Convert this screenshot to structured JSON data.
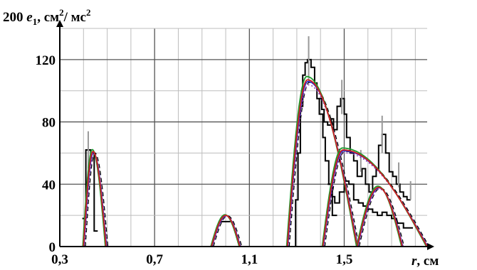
{
  "chart_data": {
    "type": "line",
    "ylabel": {
      "prefix": "200 ",
      "var": "e",
      "sub": "1",
      "rest": ", см",
      "sup1": "2",
      "mid": "/ мс",
      "sup2": "2"
    },
    "xlabel": {
      "var": "r",
      "rest": ", см"
    },
    "x_ticks": [
      "0,3",
      "0,7",
      "1,1",
      "1,5"
    ],
    "x_tick_values": [
      0.3,
      0.7,
      1.1,
      1.5
    ],
    "y_ticks": [
      "0",
      "40",
      "80",
      "120"
    ],
    "y_tick_values": [
      0,
      40,
      80,
      120
    ],
    "xlim": [
      0.3,
      1.85
    ],
    "ylim": [
      0,
      140
    ],
    "grid": true,
    "colors": {
      "histogram": "#000000",
      "error_bars": "#999999",
      "fit_red": "#cc1f1f",
      "fit_green": "#1f9a2e",
      "fit_blue": "#2a2ad0",
      "fit_purple": "#8a3aa8",
      "fit_dashed": "#000000"
    },
    "peaks": [
      {
        "name": "p1",
        "start": 0.4,
        "center": 0.44,
        "end": 0.495,
        "height": 61
      },
      {
        "name": "p2",
        "start": 0.94,
        "center": 1.0,
        "end": 1.06,
        "height": 20
      },
      {
        "name": "p3",
        "start": 1.26,
        "center": 1.345,
        "end": 1.555,
        "height": 107
      },
      {
        "name": "p4",
        "start": 1.41,
        "center": 1.495,
        "end": 1.85,
        "height": 62
      },
      {
        "name": "p5",
        "start": 1.555,
        "center": 1.645,
        "end": 1.745,
        "height": 38
      }
    ],
    "histogram_segments": [
      {
        "x": [
          0.395,
          0.41,
          0.41,
          0.43,
          0.43,
          0.445,
          0.445,
          0.46
        ],
        "y": [
          18,
          18,
          62,
          62,
          60,
          60,
          10,
          10
        ]
      },
      {
        "x": [
          0.97,
          1.02
        ],
        "y": [
          16,
          16
        ]
      },
      {
        "x": [
          1.285,
          1.295,
          1.295,
          1.305,
          1.305,
          1.315,
          1.315,
          1.325,
          1.325,
          1.335,
          1.335,
          1.345,
          1.345,
          1.36,
          1.36,
          1.375,
          1.375,
          1.385,
          1.385,
          1.395,
          1.395,
          1.41,
          1.41,
          1.42,
          1.42,
          1.435,
          1.435,
          1.45,
          1.45,
          1.47
        ],
        "y": [
          0,
          0,
          30,
          30,
          60,
          60,
          90,
          90,
          110,
          110,
          118,
          118,
          120,
          120,
          115,
          115,
          105,
          105,
          95,
          95,
          85,
          85,
          70,
          70,
          55,
          55,
          40,
          40,
          20,
          20
        ]
      },
      {
        "x": [
          1.395,
          1.405,
          1.405,
          1.415,
          1.415,
          1.43,
          1.43,
          1.445,
          1.445,
          1.455,
          1.455,
          1.47,
          1.47,
          1.485,
          1.485,
          1.5,
          1.5,
          1.51,
          1.51,
          1.525,
          1.525,
          1.54,
          1.54,
          1.555,
          1.555,
          1.575,
          1.575,
          1.59,
          1.59,
          1.605,
          1.605,
          1.62,
          1.62,
          1.635,
          1.635,
          1.645,
          1.645,
          1.66,
          1.66,
          1.675,
          1.675,
          1.69,
          1.69,
          1.705,
          1.705,
          1.72,
          1.72,
          1.735,
          1.735,
          1.75,
          1.75,
          1.765,
          1.765,
          1.78
        ],
        "y": [
          95,
          95,
          88,
          88,
          80,
          80,
          78,
          78,
          82,
          82,
          75,
          75,
          90,
          90,
          95,
          95,
          85,
          85,
          70,
          70,
          60,
          60,
          55,
          55,
          45,
          45,
          50,
          50,
          40,
          40,
          35,
          35,
          45,
          45,
          50,
          50,
          65,
          65,
          72,
          72,
          60,
          60,
          48,
          48,
          45,
          45,
          40,
          40,
          35,
          35,
          32,
          32,
          30,
          30
        ]
      },
      {
        "x": [
          1.43,
          1.445,
          1.445,
          1.46,
          1.46,
          1.48,
          1.48,
          1.5,
          1.5,
          1.52,
          1.52,
          1.54,
          1.54,
          1.56,
          1.56,
          1.58,
          1.58,
          1.6,
          1.6,
          1.62,
          1.62,
          1.64,
          1.64,
          1.66,
          1.66,
          1.68,
          1.68,
          1.7,
          1.7,
          1.72,
          1.72,
          1.75,
          1.75,
          1.79
        ],
        "y": [
          40,
          40,
          32,
          32,
          28,
          28,
          35,
          35,
          42,
          42,
          40,
          40,
          30,
          30,
          28,
          28,
          26,
          26,
          24,
          24,
          22,
          22,
          20,
          20,
          22,
          22,
          20,
          20,
          18,
          18,
          15,
          15,
          12,
          12
        ]
      }
    ],
    "error_bars": [
      {
        "x": 0.42,
        "y": 66,
        "lo": 50,
        "hi": 74
      },
      {
        "x": 1.35,
        "y": 120,
        "lo": 105,
        "hi": 135
      },
      {
        "x": 1.49,
        "y": 95,
        "lo": 85,
        "hi": 107
      },
      {
        "x": 1.66,
        "y": 72,
        "lo": 60,
        "hi": 84
      },
      {
        "x": 1.57,
        "y": 55,
        "lo": 48,
        "hi": 62
      },
      {
        "x": 1.73,
        "y": 45,
        "lo": 38,
        "hi": 54
      },
      {
        "x": 1.78,
        "y": 36,
        "lo": 30,
        "hi": 42
      }
    ]
  }
}
